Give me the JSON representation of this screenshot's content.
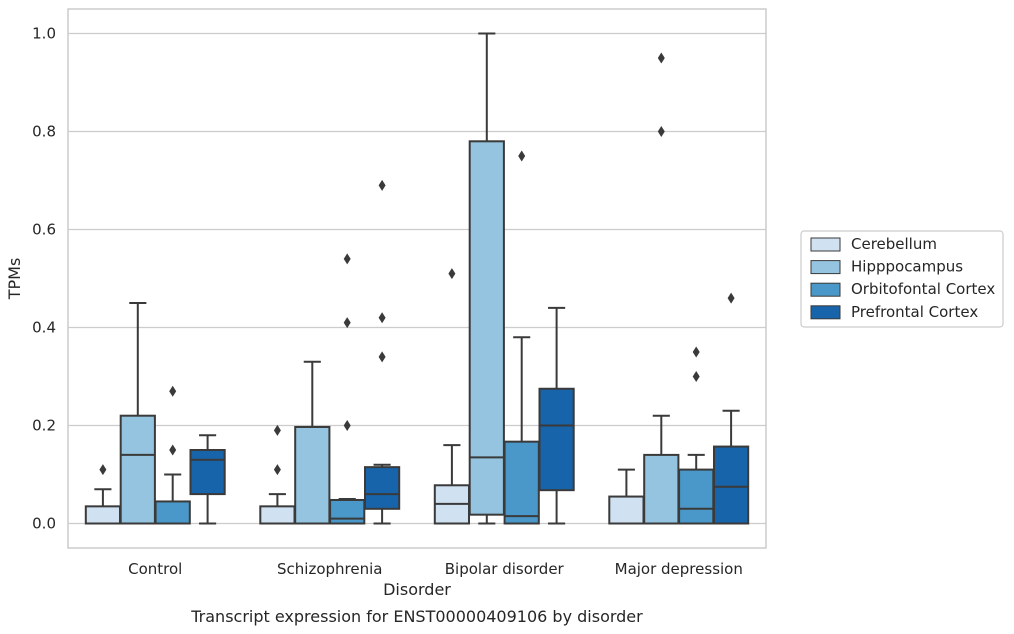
{
  "caption": "Transcript expression for ENST00000409106 by disorder",
  "colors": {
    "Cerebellum": "#d0e1f2",
    "Hipppocampus": "#94c4df",
    "Orbitofontal Cortex": "#4a98c9",
    "Prefrontal Cortex": "#1764ab",
    "edge": "#3a3a3a",
    "grid": "#cccccc",
    "frame": "#cccccc"
  },
  "chart_data": {
    "type": "boxplot",
    "xlabel": "Disorder",
    "ylabel": "TPMs",
    "ylim": [
      -0.05,
      1.05
    ],
    "yticks": [
      "0.0",
      "0.2",
      "0.4",
      "0.6",
      "0.8",
      "1.0"
    ],
    "grid": true,
    "legend_position": "right",
    "categories": [
      "Control",
      "Schizophrenia",
      "Bipolar disorder",
      "Major depression"
    ],
    "series": [
      {
        "name": "Cerebellum",
        "boxes": [
          {
            "q1": 0.0,
            "median": 0.0,
            "q3": 0.035,
            "whislo": 0.0,
            "whishi": 0.07,
            "fliers": [
              0.11
            ]
          },
          {
            "q1": 0.0,
            "median": 0.0,
            "q3": 0.035,
            "whislo": 0.0,
            "whishi": 0.06,
            "fliers": [
              0.11,
              0.19
            ]
          },
          {
            "q1": 0.0,
            "median": 0.04,
            "q3": 0.078,
            "whislo": 0.0,
            "whishi": 0.16,
            "fliers": [
              0.51
            ]
          },
          {
            "q1": 0.0,
            "median": 0.0,
            "q3": 0.055,
            "whislo": 0.0,
            "whishi": 0.11,
            "fliers": []
          }
        ]
      },
      {
        "name": "Hipppocampus",
        "boxes": [
          {
            "q1": 0.0,
            "median": 0.14,
            "q3": 0.22,
            "whislo": 0.0,
            "whishi": 0.45,
            "fliers": []
          },
          {
            "q1": 0.0,
            "median": 0.0,
            "q3": 0.197,
            "whislo": 0.0,
            "whishi": 0.33,
            "fliers": []
          },
          {
            "q1": 0.018,
            "median": 0.135,
            "q3": 0.78,
            "whislo": 0.0,
            "whishi": 1.0,
            "fliers": []
          },
          {
            "q1": 0.0,
            "median": 0.0,
            "q3": 0.14,
            "whislo": 0.0,
            "whishi": 0.22,
            "fliers": [
              0.8,
              0.95
            ]
          }
        ]
      },
      {
        "name": "Orbitofontal Cortex",
        "boxes": [
          {
            "q1": 0.0,
            "median": 0.0,
            "q3": 0.045,
            "whislo": 0.0,
            "whishi": 0.1,
            "fliers": [
              0.15,
              0.27
            ]
          },
          {
            "q1": 0.0,
            "median": 0.01,
            "q3": 0.048,
            "whislo": 0.0,
            "whishi": 0.05,
            "fliers": [
              0.2,
              0.41,
              0.54
            ]
          },
          {
            "q1": 0.0,
            "median": 0.015,
            "q3": 0.167,
            "whislo": 0.0,
            "whishi": 0.38,
            "fliers": [
              0.75
            ]
          },
          {
            "q1": 0.0,
            "median": 0.03,
            "q3": 0.11,
            "whislo": 0.0,
            "whishi": 0.14,
            "fliers": [
              0.3,
              0.35
            ]
          }
        ]
      },
      {
        "name": "Prefrontal Cortex",
        "boxes": [
          {
            "q1": 0.06,
            "median": 0.13,
            "q3": 0.15,
            "whislo": 0.0,
            "whishi": 0.18,
            "fliers": []
          },
          {
            "q1": 0.03,
            "median": 0.06,
            "q3": 0.115,
            "whislo": 0.0,
            "whishi": 0.12,
            "fliers": [
              0.34,
              0.42,
              0.69
            ]
          },
          {
            "q1": 0.068,
            "median": 0.2,
            "q3": 0.275,
            "whislo": 0.0,
            "whishi": 0.44,
            "fliers": []
          },
          {
            "q1": 0.0,
            "median": 0.075,
            "q3": 0.157,
            "whislo": 0.0,
            "whishi": 0.23,
            "fliers": [
              0.46
            ]
          }
        ]
      }
    ]
  }
}
